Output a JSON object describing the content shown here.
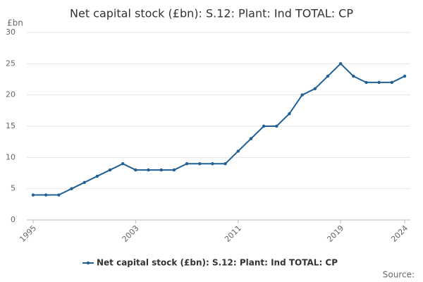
{
  "chart_data": {
    "type": "line",
    "title": "Net capital stock (£bn): S.12: Plant: Ind TOTAL: CP",
    "y_unit": "£bn",
    "source": "Source:",
    "x": [
      1995,
      1996,
      1997,
      1998,
      1999,
      2000,
      2001,
      2002,
      2003,
      2004,
      2005,
      2006,
      2007,
      2008,
      2009,
      2010,
      2011,
      2012,
      2013,
      2014,
      2015,
      2016,
      2017,
      2018,
      2019,
      2020,
      2021,
      2022,
      2023,
      2024
    ],
    "series": [
      {
        "name": "Net capital stock (£bn): S.12: Plant: Ind TOTAL: CP",
        "color": "#206095",
        "values": [
          4,
          4,
          4,
          5,
          6,
          7,
          8,
          9,
          8,
          8,
          8,
          8,
          9,
          9,
          9,
          9,
          11,
          13,
          15,
          15,
          17,
          20,
          21,
          23,
          25,
          23,
          22,
          22,
          22,
          23
        ]
      }
    ],
    "xlim": [
      1995,
      2024
    ],
    "xticks": [
      1995,
      2003,
      2011,
      2019,
      2024
    ],
    "ylim": [
      0,
      30
    ],
    "yticks": [
      0,
      5,
      10,
      15,
      20,
      25,
      30
    ],
    "grid": true
  }
}
